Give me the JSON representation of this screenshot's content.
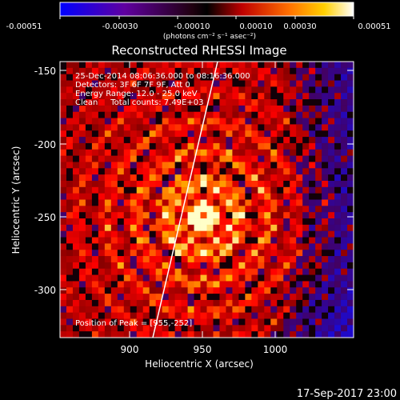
{
  "colorbar": {
    "ticks": [
      "-0.00051",
      "-0.00030",
      "-0.00010",
      "0.00010",
      "0.00030",
      "0.00051"
    ],
    "units": "(photons cm⁻² s⁻¹ asec⁻²)"
  },
  "title": "Reconstructed RHESSI Image",
  "annotations": [
    "25-Dec-2014 08:06:36.000 to 08:16:36.000",
    "Detectors: 3F 6F 7F 9F, Att 0",
    "Energy Range: 12.0 - 25.0 keV",
    "Clean     Total counts: 7.49E+03"
  ],
  "peak_label": "Position of Peak = [955,-252]",
  "axes": {
    "xlabel": "Heliocentric X (arcsec)",
    "ylabel": "Heliocentric Y (arcsec)",
    "xticks": [
      "900",
      "950",
      "1000"
    ],
    "yticks": [
      "-150",
      "-200",
      "-250",
      "-300"
    ],
    "xlim": [
      862,
      1045
    ],
    "ylim": [
      -338,
      -143
    ]
  },
  "timestamp": "17-Sep-2017 23:00",
  "colors": {
    "background": "#000000",
    "colormap": [
      "#0000ff",
      "#4b0080",
      "#000000",
      "#d00000",
      "#ff8000",
      "#ffe000",
      "#ffffff"
    ]
  }
}
